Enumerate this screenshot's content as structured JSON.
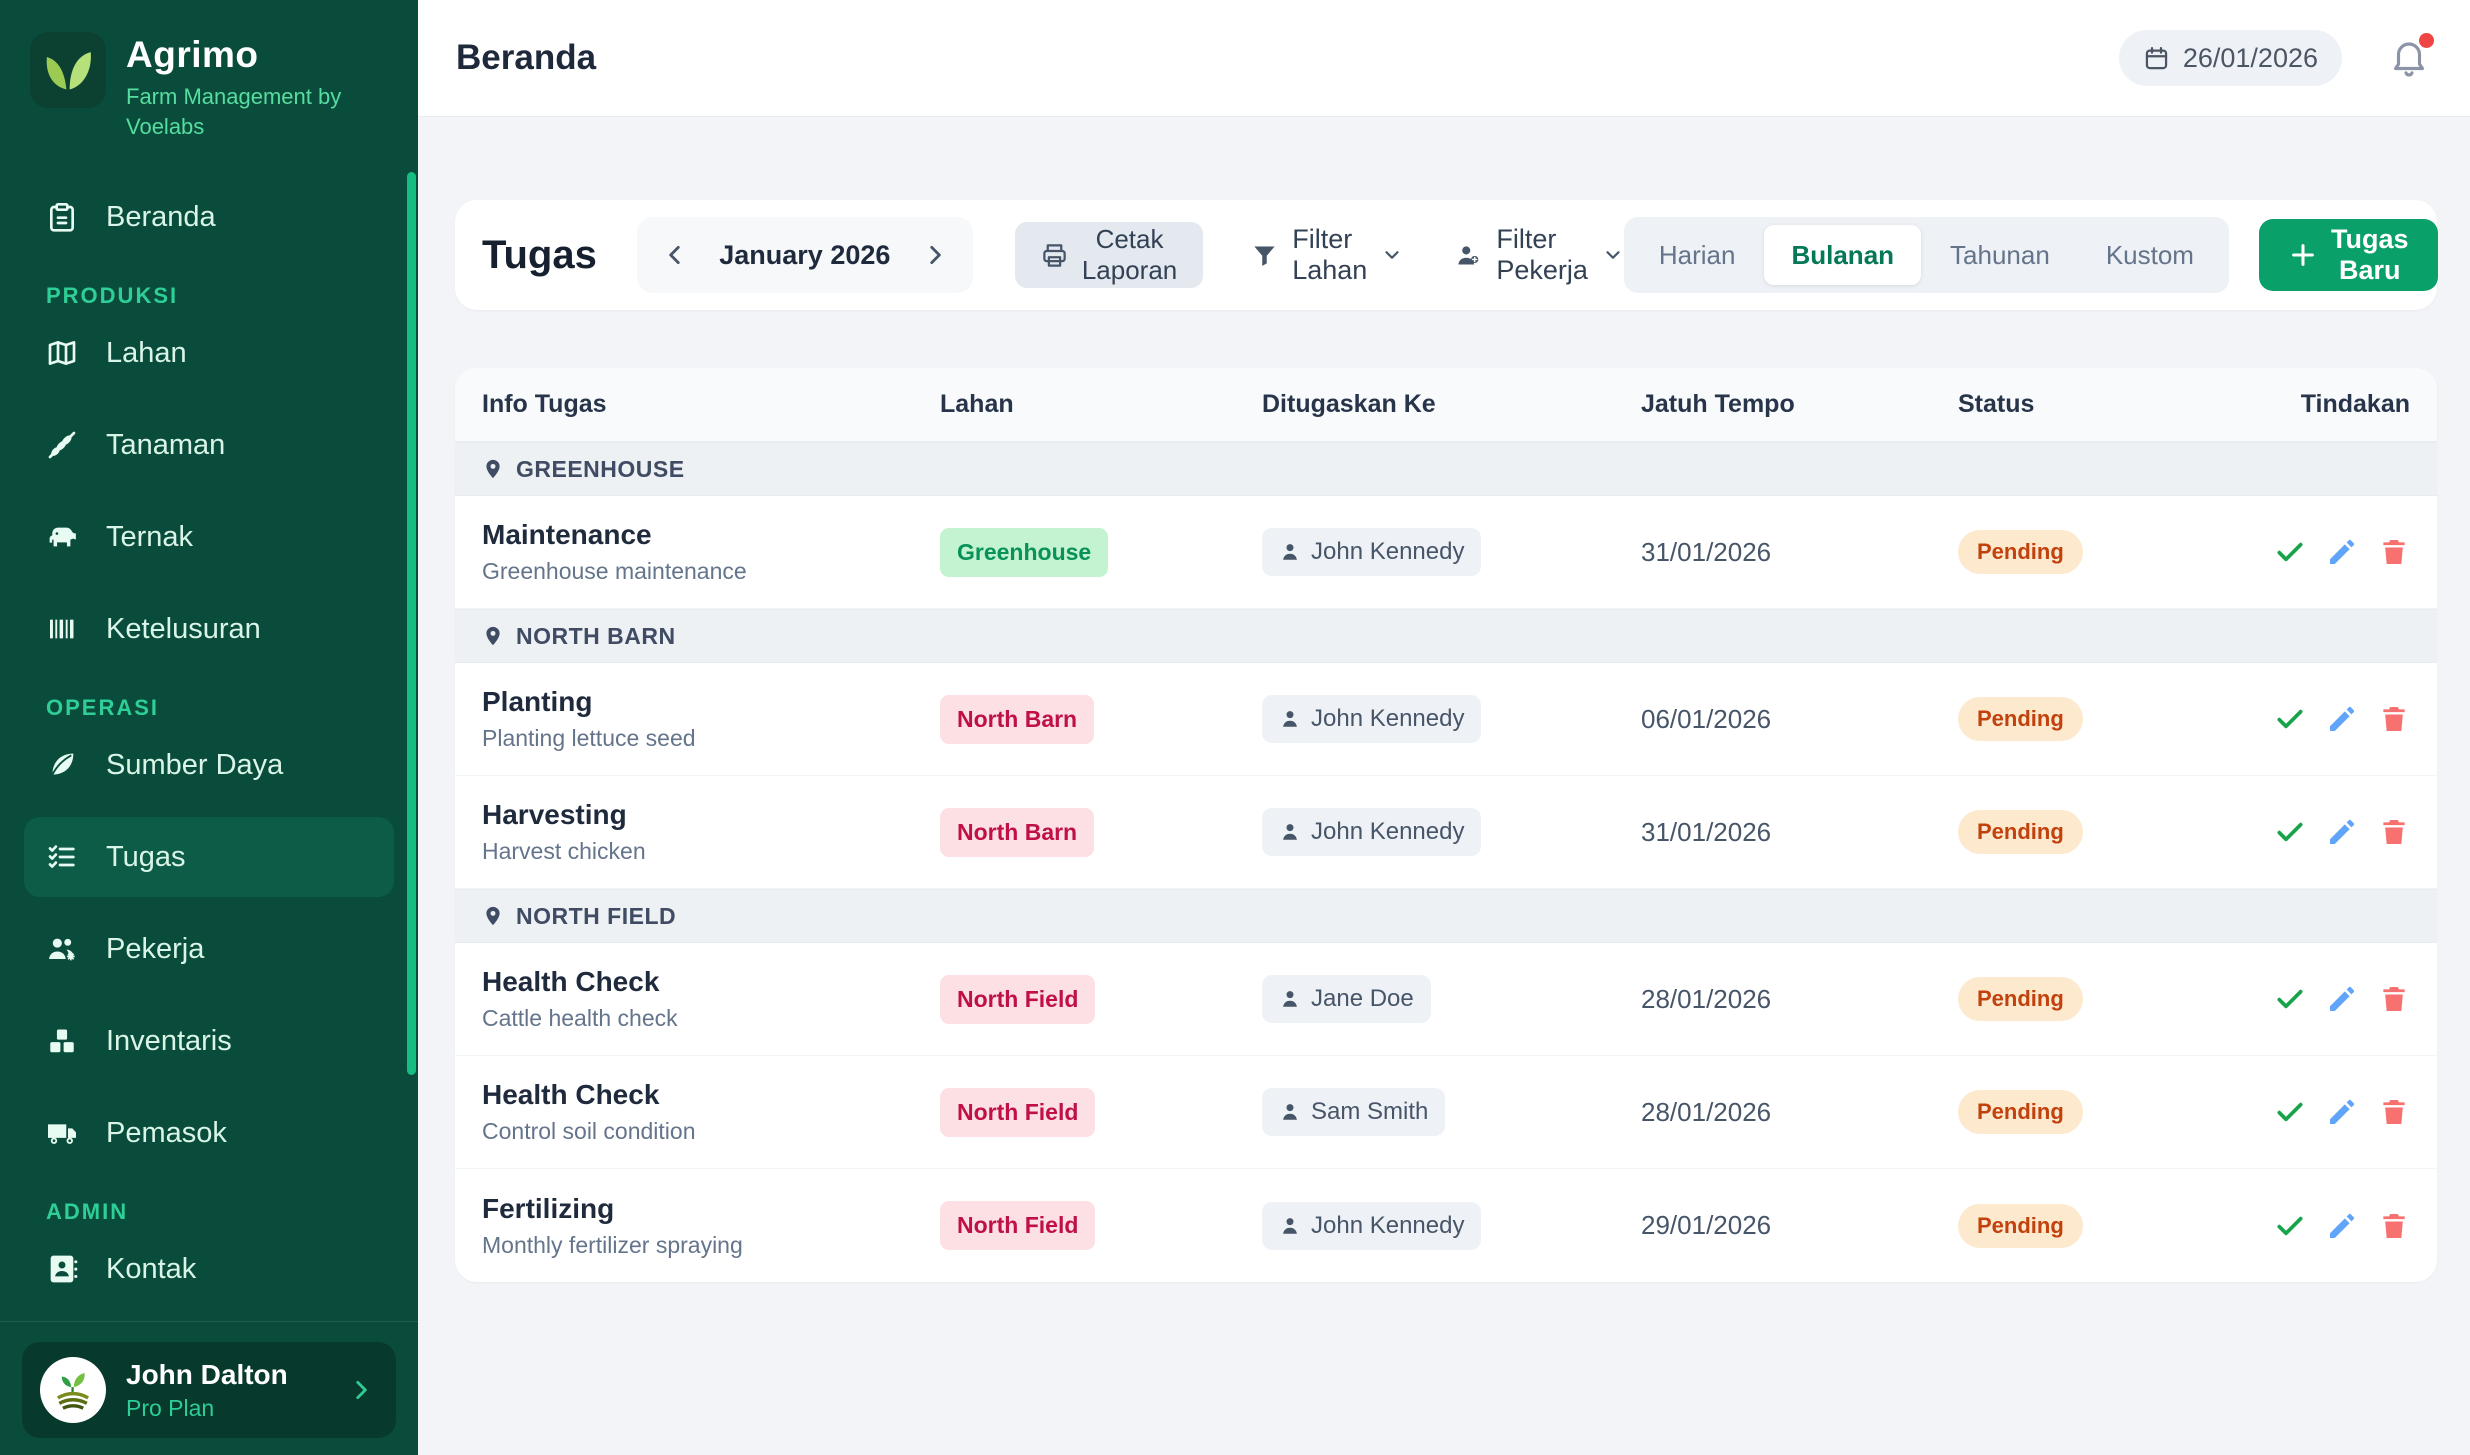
{
  "sidebar": {
    "brand": {
      "name": "Agrimo",
      "tagline": "Farm Management by Voelabs",
      "logo_icon": "sprout-leaves-icon"
    },
    "sections": [
      {
        "label": "",
        "items": [
          {
            "label": "Beranda",
            "icon": "clipboard-icon",
            "active": false
          }
        ]
      },
      {
        "label": "PRODUKSI",
        "items": [
          {
            "label": "Lahan",
            "icon": "map-icon",
            "active": false
          },
          {
            "label": "Tanaman",
            "icon": "wheat-icon",
            "active": false
          },
          {
            "label": "Ternak",
            "icon": "cow-icon",
            "active": false
          },
          {
            "label": "Ketelusuran",
            "icon": "barcode-icon",
            "active": false
          }
        ]
      },
      {
        "label": "OPERASI",
        "items": [
          {
            "label": "Sumber Daya",
            "icon": "leaf-icon",
            "active": false
          },
          {
            "label": "Tugas",
            "icon": "list-checks-icon",
            "active": true
          },
          {
            "label": "Pekerja",
            "icon": "users-gear-icon",
            "active": false
          },
          {
            "label": "Inventaris",
            "icon": "boxes-icon",
            "active": false
          },
          {
            "label": "Pemasok",
            "icon": "truck-icon",
            "active": false
          }
        ]
      },
      {
        "label": "ADMIN",
        "items": [
          {
            "label": "Kontak",
            "icon": "contact-book-icon",
            "active": false
          }
        ]
      }
    ],
    "user": {
      "name": "John Dalton",
      "plan": "Pro Plan",
      "avatar_icon": "farm-emblem-icon",
      "chevron_icon": "chevron-right-icon"
    }
  },
  "header": {
    "title": "Beranda",
    "date": "26/01/2026",
    "date_icon": "calendar-icon",
    "notification_icon": "bell-icon",
    "has_unread_notification": true
  },
  "toolbar": {
    "title": "Tugas",
    "month_label": "January 2026",
    "prev_icon": "chevron-left-icon",
    "next_icon": "chevron-right-icon",
    "print_label": "Cetak Laporan",
    "print_icon": "printer-icon",
    "filter_lahan_label": "Filter Lahan",
    "filter_lahan_icon": "funnel-icon",
    "filter_pekerja_label": "Filter Pekerja",
    "filter_pekerja_icon": "user-filter-icon",
    "range_tabs": [
      "Harian",
      "Bulanan",
      "Tahunan",
      "Kustom"
    ],
    "active_tab": "Bulanan",
    "new_task_label": "Tugas Baru",
    "new_task_icon": "plus-icon"
  },
  "table": {
    "columns": [
      "Info Tugas",
      "Lahan",
      "Ditugaskan Ke",
      "Jatuh Tempo",
      "Status",
      "Tindakan"
    ],
    "location_icon": "map-pin-icon",
    "assignee_icon": "person-icon",
    "action_icons": [
      "check-icon",
      "pencil-icon",
      "trash-icon"
    ],
    "groups": [
      {
        "location": "GREENHOUSE",
        "rows": [
          {
            "title": "Maintenance",
            "desc": "Greenhouse maintenance",
            "lahan": "Greenhouse",
            "tone": "green",
            "assignee": "John Kennedy",
            "due": "31/01/2026",
            "status": "Pending"
          }
        ]
      },
      {
        "location": "NORTH BARN",
        "rows": [
          {
            "title": "Planting",
            "desc": "Planting lettuce seed",
            "lahan": "North Barn",
            "tone": "rose",
            "assignee": "John Kennedy",
            "due": "06/01/2026",
            "status": "Pending"
          },
          {
            "title": "Harvesting",
            "desc": "Harvest chicken",
            "lahan": "North Barn",
            "tone": "rose",
            "assignee": "John Kennedy",
            "due": "31/01/2026",
            "status": "Pending"
          }
        ]
      },
      {
        "location": "NORTH FIELD",
        "rows": [
          {
            "title": "Health Check",
            "desc": "Cattle health check",
            "lahan": "North Field",
            "tone": "rose",
            "assignee": "Jane Doe",
            "due": "28/01/2026",
            "status": "Pending"
          },
          {
            "title": "Health Check",
            "desc": "Control soil condition",
            "lahan": "North Field",
            "tone": "rose",
            "assignee": "Sam Smith",
            "due": "28/01/2026",
            "status": "Pending"
          },
          {
            "title": "Fertilizing",
            "desc": "Monthly fertilizer spraying",
            "lahan": "North Field",
            "tone": "rose",
            "assignee": "John Kennedy",
            "due": "29/01/2026",
            "status": "Pending"
          }
        ]
      }
    ]
  },
  "colors": {
    "sidebar_bg": "#0a4c3b",
    "sidebar_active_bg": "#0d5c48",
    "sidebar_accent": "#2ece96",
    "sidebar_scrollbar": "#16bd83",
    "primary_button": "#0aa06a",
    "active_tab_text": "#047857",
    "badge_green_bg": "#c3f3d0",
    "badge_green_text": "#089158",
    "badge_rose_bg": "#fde0e4",
    "badge_rose_text": "#c01048",
    "status_pending_bg": "#fdeace",
    "status_pending_text": "#c2410c",
    "action_check": "#16a34a",
    "action_edit": "#60a5fa",
    "action_delete": "#f87171",
    "notification_dot": "#ef4444"
  }
}
